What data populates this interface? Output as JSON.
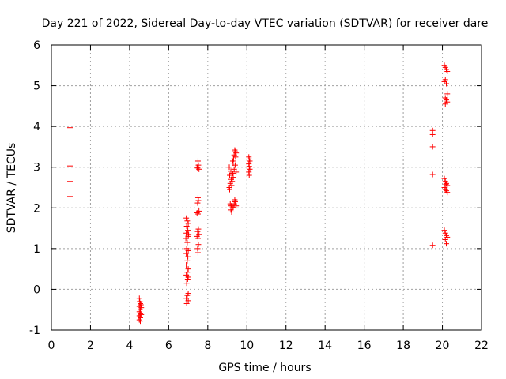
{
  "chart_data": {
    "type": "scatter",
    "title": "Day 221 of 2022, Sidereal Day-to-day VTEC variation (SDTVAR) for receiver dare",
    "xlabel": "GPS time / hours",
    "ylabel": "SDTVAR / TECUs",
    "xlim": [
      0,
      22
    ],
    "ylim": [
      -1,
      6
    ],
    "xticks": [
      "0",
      "2",
      "4",
      "6",
      "8",
      "10",
      "12",
      "14",
      "16",
      "18",
      "20",
      "22"
    ],
    "yticks": [
      "-1",
      "0",
      "1",
      "2",
      "3",
      "4",
      "5",
      "6"
    ],
    "grid": true,
    "marker": "+",
    "color": "#ff0000",
    "series": [
      {
        "name": "SDTVAR",
        "points": [
          [
            0.95,
            3.97
          ],
          [
            0.95,
            3.03
          ],
          [
            0.95,
            2.65
          ],
          [
            0.95,
            2.28
          ],
          [
            4.5,
            -0.22
          ],
          [
            4.52,
            -0.3
          ],
          [
            4.55,
            -0.35
          ],
          [
            4.5,
            -0.42
          ],
          [
            4.55,
            -0.5
          ],
          [
            4.5,
            -0.55
          ],
          [
            4.55,
            -0.6
          ],
          [
            4.5,
            -0.65
          ],
          [
            4.55,
            -0.7
          ],
          [
            4.5,
            -0.75
          ],
          [
            4.55,
            -0.78
          ],
          [
            4.6,
            -0.45
          ],
          [
            4.6,
            -0.62
          ],
          [
            4.48,
            -0.68
          ],
          [
            4.58,
            -0.38
          ],
          [
            6.9,
            1.75
          ],
          [
            6.95,
            1.68
          ],
          [
            7.0,
            1.62
          ],
          [
            6.92,
            1.55
          ],
          [
            6.98,
            1.45
          ],
          [
            6.9,
            1.38
          ],
          [
            7.0,
            1.3
          ],
          [
            6.95,
            1.15
          ],
          [
            6.92,
            1.0
          ],
          [
            7.0,
            0.95
          ],
          [
            6.9,
            0.88
          ],
          [
            6.98,
            0.8
          ],
          [
            6.95,
            0.7
          ],
          [
            6.9,
            0.6
          ],
          [
            7.0,
            0.5
          ],
          [
            6.95,
            0.42
          ],
          [
            6.9,
            0.35
          ],
          [
            7.0,
            0.3
          ],
          [
            6.97,
            0.25
          ],
          [
            6.92,
            0.15
          ],
          [
            7.0,
            -0.1
          ],
          [
            6.95,
            -0.15
          ],
          [
            6.9,
            -0.22
          ],
          [
            7.0,
            -0.28
          ],
          [
            6.92,
            -0.35
          ],
          [
            7.02,
            1.35
          ],
          [
            6.88,
            1.25
          ],
          [
            7.5,
            3.15
          ],
          [
            7.52,
            3.05
          ],
          [
            7.48,
            2.98
          ],
          [
            7.55,
            2.95
          ],
          [
            7.45,
            3.0
          ],
          [
            7.5,
            2.25
          ],
          [
            7.52,
            2.18
          ],
          [
            7.48,
            2.12
          ],
          [
            7.55,
            1.92
          ],
          [
            7.45,
            1.88
          ],
          [
            7.5,
            1.85
          ],
          [
            7.52,
            1.48
          ],
          [
            7.48,
            1.42
          ],
          [
            7.55,
            1.35
          ],
          [
            7.45,
            1.3
          ],
          [
            7.5,
            1.25
          ],
          [
            7.52,
            1.1
          ],
          [
            7.48,
            1.0
          ],
          [
            7.5,
            0.9
          ],
          [
            9.1,
            2.5
          ],
          [
            9.15,
            2.6
          ],
          [
            9.2,
            2.7
          ],
          [
            9.12,
            2.8
          ],
          [
            9.18,
            2.9
          ],
          [
            9.1,
            3.0
          ],
          [
            9.22,
            2.55
          ],
          [
            9.25,
            2.65
          ],
          [
            9.3,
            2.75
          ],
          [
            9.28,
            2.85
          ],
          [
            9.35,
            2.95
          ],
          [
            9.3,
            3.1
          ],
          [
            9.32,
            3.2
          ],
          [
            9.35,
            3.3
          ],
          [
            9.4,
            3.38
          ],
          [
            9.38,
            3.42
          ],
          [
            9.45,
            3.35
          ],
          [
            9.42,
            3.25
          ],
          [
            9.4,
            3.05
          ],
          [
            9.45,
            2.88
          ],
          [
            9.15,
            2.1
          ],
          [
            9.2,
            2.05
          ],
          [
            9.25,
            2.0
          ],
          [
            9.18,
            1.95
          ],
          [
            9.22,
            1.9
          ],
          [
            9.35,
            2.1
          ],
          [
            9.4,
            2.15
          ],
          [
            9.45,
            2.05
          ],
          [
            9.3,
            2.02
          ],
          [
            9.38,
            2.2
          ],
          [
            9.12,
            2.45
          ],
          [
            9.28,
            3.15
          ],
          [
            10.1,
            3.25
          ],
          [
            10.12,
            3.2
          ],
          [
            10.15,
            3.15
          ],
          [
            10.1,
            3.08
          ],
          [
            10.12,
            3.02
          ],
          [
            10.15,
            2.95
          ],
          [
            10.1,
            2.88
          ],
          [
            10.12,
            2.8
          ],
          [
            19.5,
            3.9
          ],
          [
            19.5,
            3.8
          ],
          [
            19.5,
            3.5
          ],
          [
            19.5,
            2.82
          ],
          [
            19.5,
            1.08
          ],
          [
            20.1,
            5.5
          ],
          [
            20.15,
            5.45
          ],
          [
            20.2,
            5.4
          ],
          [
            20.25,
            5.35
          ],
          [
            20.15,
            5.15
          ],
          [
            20.1,
            5.1
          ],
          [
            20.2,
            5.05
          ],
          [
            20.25,
            4.8
          ],
          [
            20.15,
            4.7
          ],
          [
            20.2,
            4.65
          ],
          [
            20.25,
            4.6
          ],
          [
            20.15,
            4.55
          ],
          [
            20.1,
            2.72
          ],
          [
            20.15,
            2.65
          ],
          [
            20.2,
            2.6
          ],
          [
            20.25,
            2.55
          ],
          [
            20.1,
            2.5
          ],
          [
            20.15,
            2.45
          ],
          [
            20.2,
            2.42
          ],
          [
            20.25,
            2.38
          ],
          [
            20.18,
            2.58
          ],
          [
            20.1,
            1.45
          ],
          [
            20.15,
            1.38
          ],
          [
            20.2,
            1.32
          ],
          [
            20.25,
            1.28
          ],
          [
            20.15,
            1.22
          ],
          [
            20.2,
            1.12
          ]
        ]
      }
    ]
  }
}
